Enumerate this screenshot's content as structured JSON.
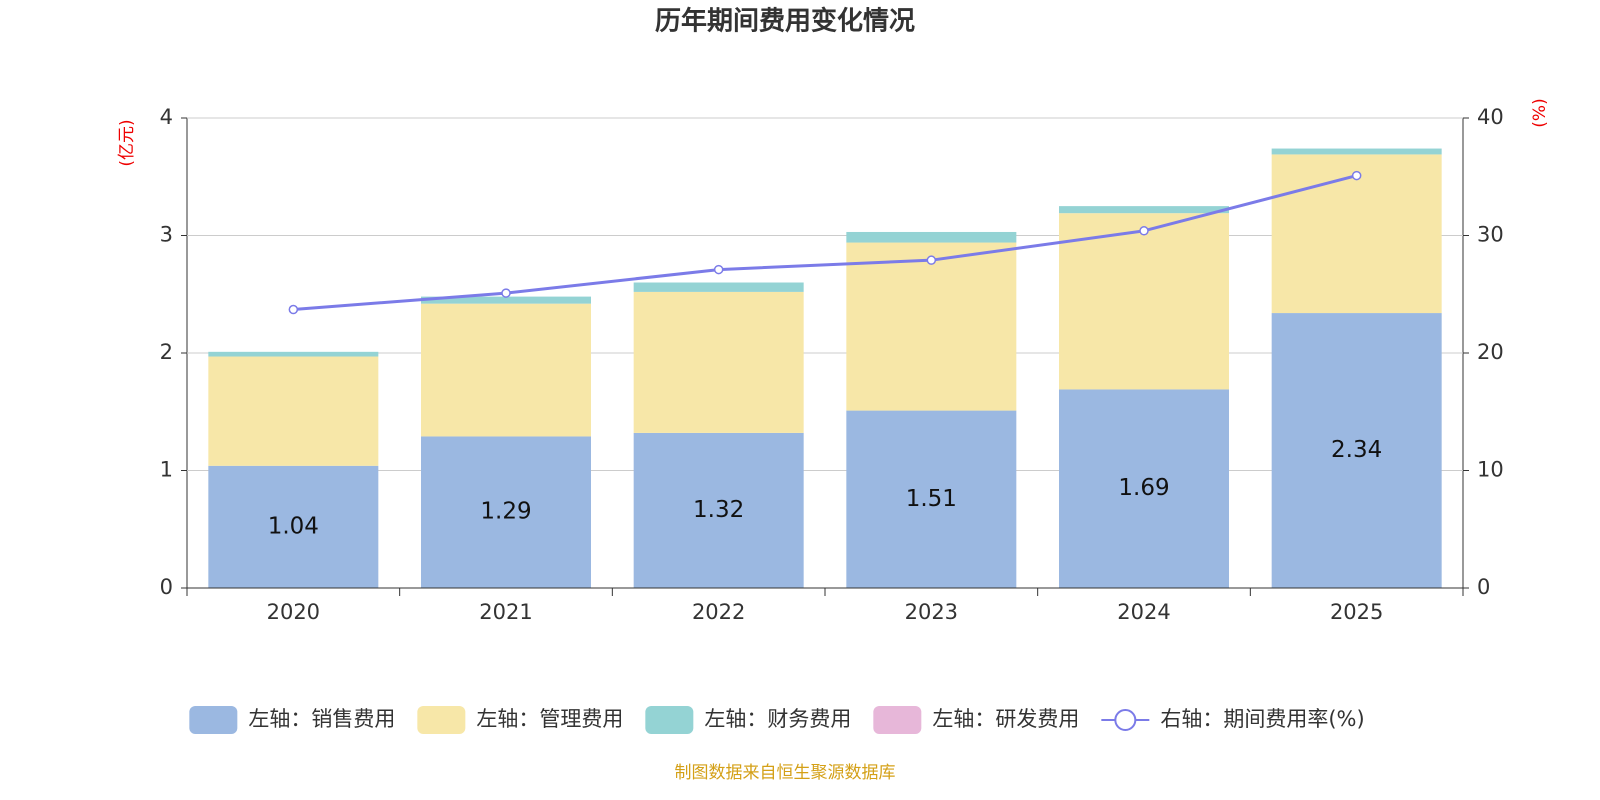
{
  "chart_data": {
    "type": "bar",
    "title": "历年期间费用变化情况",
    "y_label": "(亿元)",
    "y2_label": "(%)",
    "source": "制图数据来自恒生聚源数据库",
    "categories": [
      "2020",
      "2021",
      "2022",
      "2023",
      "2024",
      "2025"
    ],
    "ylim": [
      0,
      4
    ],
    "yticks": [
      0,
      1,
      2,
      3,
      4
    ],
    "y2lim": [
      0,
      40
    ],
    "y2ticks": [
      0,
      10,
      20,
      30,
      40
    ],
    "grid": true,
    "stacked": true,
    "legend": "bottom",
    "series": [
      {
        "name": "左轴：销售费用",
        "type": "bar",
        "color": "#9bb8e1",
        "values": [
          1.04,
          1.29,
          1.32,
          1.51,
          1.69,
          2.34
        ],
        "show_labels": true
      },
      {
        "name": "左轴：管理费用",
        "type": "bar",
        "color": "#f7e7a8",
        "values": [
          0.93,
          1.13,
          1.2,
          1.43,
          1.5,
          1.35
        ]
      },
      {
        "name": "左轴：财务费用",
        "type": "bar",
        "color": "#94d3d4",
        "values": [
          0.04,
          0.06,
          0.08,
          0.09,
          0.06,
          0.05
        ]
      },
      {
        "name": "左轴：研发费用",
        "type": "bar",
        "color": "#e7b7d9",
        "values": [
          0,
          0,
          0,
          0,
          0,
          0
        ]
      },
      {
        "name": "右轴：期间费用率(%)",
        "type": "line",
        "axis": "y2",
        "color": "#7b7be8",
        "values": [
          23.7,
          25.1,
          27.1,
          27.9,
          30.4,
          35.1
        ]
      }
    ]
  }
}
